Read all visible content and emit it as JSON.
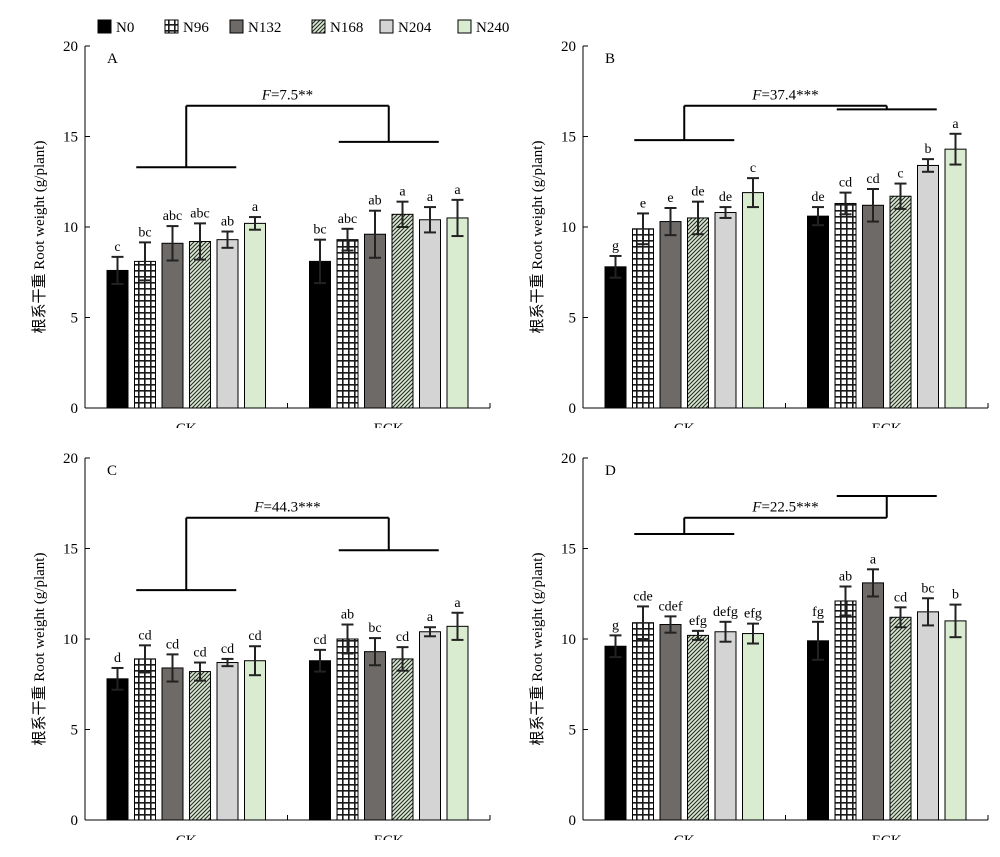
{
  "legend": [
    {
      "name": "N0",
      "color": "#000000",
      "pattern": "solid"
    },
    {
      "name": "N96",
      "color": "#1a1a1a",
      "pattern": "grid"
    },
    {
      "name": "N132",
      "color": "#6e6a68",
      "pattern": "solid"
    },
    {
      "name": "N168",
      "color": "#2a2a2a",
      "pattern": "diag"
    },
    {
      "name": "N204",
      "color": "#d4d4d4",
      "pattern": "solid"
    },
    {
      "name": "N240",
      "color": "#d9ecd0",
      "pattern": "solid"
    }
  ],
  "chart_data": [
    {
      "type": "bar",
      "panel_label": "A",
      "ylabel": "根系干重 Root weight (g/plant)",
      "categories": [
        "CK",
        "ECK"
      ],
      "ylim": [
        0,
        20
      ],
      "yticks": [
        0,
        5,
        10,
        15,
        20
      ],
      "stat": {
        "prefix": "F",
        "text": "=7.5**"
      },
      "group_mean_levels": [
        13.3,
        14.7
      ],
      "series": [
        {
          "name": "N0",
          "values": [
            7.6,
            8.1
          ],
          "errors": [
            0.75,
            1.2
          ],
          "letters": [
            "c",
            "bc"
          ]
        },
        {
          "name": "N96",
          "values": [
            8.1,
            9.3
          ],
          "errors": [
            1.05,
            0.6
          ],
          "letters": [
            "bc",
            "abc"
          ]
        },
        {
          "name": "N132",
          "values": [
            9.1,
            9.6
          ],
          "errors": [
            0.95,
            1.3
          ],
          "letters": [
            "abc",
            "ab"
          ]
        },
        {
          "name": "N168",
          "values": [
            9.2,
            10.7
          ],
          "errors": [
            1.0,
            0.7
          ],
          "letters": [
            "abc",
            "a"
          ]
        },
        {
          "name": "N204",
          "values": [
            9.3,
            10.4
          ],
          "errors": [
            0.45,
            0.7
          ],
          "letters": [
            "ab",
            "a"
          ]
        },
        {
          "name": "N240",
          "values": [
            10.2,
            10.5
          ],
          "errors": [
            0.35,
            1.0
          ],
          "letters": [
            "a",
            "a"
          ]
        }
      ]
    },
    {
      "type": "bar",
      "panel_label": "B",
      "ylabel": "根系干重 Root weight (g/plant)",
      "categories": [
        "CK",
        "ECK"
      ],
      "ylim": [
        0,
        20
      ],
      "yticks": [
        0,
        5,
        10,
        15,
        20
      ],
      "stat": {
        "prefix": "F",
        "text": "=37.4***"
      },
      "group_mean_levels": [
        14.8,
        16.5
      ],
      "series": [
        {
          "name": "N0",
          "values": [
            7.8,
            10.6
          ],
          "errors": [
            0.6,
            0.5
          ],
          "letters": [
            "g",
            "de"
          ]
        },
        {
          "name": "N96",
          "values": [
            9.9,
            11.3
          ],
          "errors": [
            0.85,
            0.6
          ],
          "letters": [
            "e",
            "cd"
          ]
        },
        {
          "name": "N132",
          "values": [
            10.3,
            11.2
          ],
          "errors": [
            0.75,
            0.9
          ],
          "letters": [
            "e",
            "cd"
          ]
        },
        {
          "name": "N168",
          "values": [
            10.5,
            11.7
          ],
          "errors": [
            0.9,
            0.7
          ],
          "letters": [
            "de",
            "c"
          ]
        },
        {
          "name": "N204",
          "values": [
            10.8,
            13.4
          ],
          "errors": [
            0.3,
            0.35
          ],
          "letters": [
            "de",
            "b"
          ]
        },
        {
          "name": "N240",
          "values": [
            11.9,
            14.3
          ],
          "errors": [
            0.8,
            0.85
          ],
          "letters": [
            "c",
            "a"
          ]
        }
      ]
    },
    {
      "type": "bar",
      "panel_label": "C",
      "ylabel": "根系干重 Root weight (g/plant)",
      "categories": [
        "CK",
        "ECK"
      ],
      "ylim": [
        0,
        20
      ],
      "yticks": [
        0,
        5,
        10,
        15,
        20
      ],
      "stat": {
        "prefix": "F",
        "text": "=44.3***"
      },
      "group_mean_levels": [
        12.7,
        14.9
      ],
      "series": [
        {
          "name": "N0",
          "values": [
            7.8,
            8.8
          ],
          "errors": [
            0.6,
            0.6
          ],
          "letters": [
            "d",
            "cd"
          ]
        },
        {
          "name": "N96",
          "values": [
            8.9,
            10.0
          ],
          "errors": [
            0.75,
            0.8
          ],
          "letters": [
            "cd",
            "ab"
          ]
        },
        {
          "name": "N132",
          "values": [
            8.4,
            9.3
          ],
          "errors": [
            0.75,
            0.75
          ],
          "letters": [
            "cd",
            "bc"
          ]
        },
        {
          "name": "N168",
          "values": [
            8.2,
            8.9
          ],
          "errors": [
            0.5,
            0.65
          ],
          "letters": [
            "cd",
            "cd"
          ]
        },
        {
          "name": "N204",
          "values": [
            8.7,
            10.4
          ],
          "errors": [
            0.2,
            0.25
          ],
          "letters": [
            "cd",
            "a"
          ]
        },
        {
          "name": "N240",
          "values": [
            8.8,
            10.7
          ],
          "errors": [
            0.8,
            0.75
          ],
          "letters": [
            "cd",
            "a"
          ]
        }
      ]
    },
    {
      "type": "bar",
      "panel_label": "D",
      "ylabel": "根系干重 Root weight (g/plant)",
      "categories": [
        "CK",
        "ECK"
      ],
      "ylim": [
        0,
        20
      ],
      "yticks": [
        0,
        5,
        10,
        15,
        20
      ],
      "stat": {
        "prefix": "F",
        "text": "=22.5***"
      },
      "group_mean_levels": [
        15.8,
        17.9
      ],
      "series": [
        {
          "name": "N0",
          "values": [
            9.6,
            9.9
          ],
          "errors": [
            0.6,
            1.05
          ],
          "letters": [
            "g",
            "fg"
          ]
        },
        {
          "name": "N96",
          "values": [
            10.9,
            12.1
          ],
          "errors": [
            0.9,
            0.8
          ],
          "letters": [
            "cde",
            "ab"
          ]
        },
        {
          "name": "N132",
          "values": [
            10.8,
            13.1
          ],
          "errors": [
            0.45,
            0.75
          ],
          "letters": [
            "cdef",
            "a"
          ]
        },
        {
          "name": "N168",
          "values": [
            10.2,
            11.2
          ],
          "errors": [
            0.25,
            0.55
          ],
          "letters": [
            "efg",
            "cd"
          ]
        },
        {
          "name": "N204",
          "values": [
            10.4,
            11.5
          ],
          "errors": [
            0.55,
            0.75
          ],
          "letters": [
            "defg",
            "bc"
          ]
        },
        {
          "name": "N240",
          "values": [
            10.3,
            11.0
          ],
          "errors": [
            0.55,
            0.9
          ],
          "letters": [
            "efg",
            "b"
          ]
        }
      ]
    }
  ]
}
